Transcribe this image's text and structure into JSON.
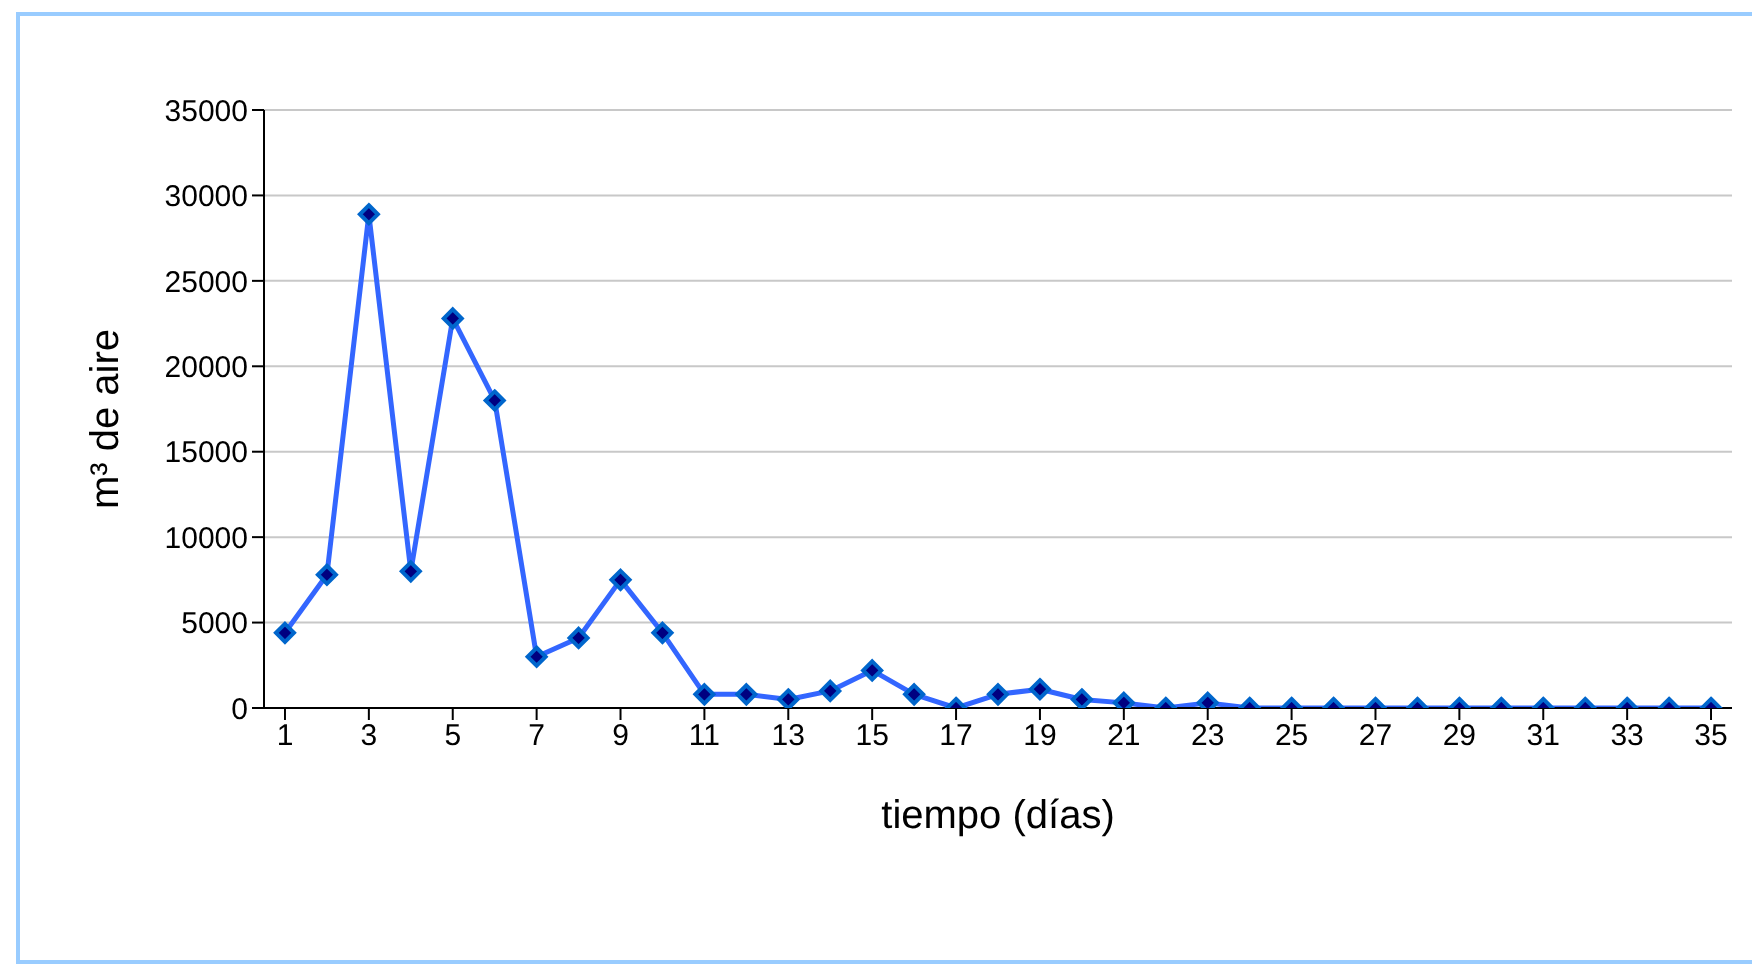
{
  "chart_data": {
    "type": "line",
    "xlabel": "tiempo (días)",
    "ylabel": "m³ de aire",
    "x": [
      1,
      2,
      3,
      4,
      5,
      6,
      7,
      8,
      9,
      10,
      11,
      12,
      13,
      14,
      15,
      16,
      17,
      18,
      19,
      20,
      21,
      22,
      23,
      24,
      25,
      26,
      27,
      28,
      29,
      30,
      31,
      32,
      33,
      34,
      35
    ],
    "xlim": [
      0.5,
      35.5
    ],
    "xticks": [
      1,
      3,
      5,
      7,
      9,
      11,
      13,
      15,
      17,
      19,
      21,
      23,
      25,
      27,
      29,
      31,
      33,
      35
    ],
    "series": [
      {
        "color": "#3366ff",
        "values": [
          4400,
          7800,
          28900,
          8000,
          22800,
          18000,
          3000,
          4100,
          7500,
          4400,
          800,
          800,
          500,
          1000,
          2200,
          800,
          0,
          800,
          1100,
          500,
          300,
          0,
          300,
          0,
          0,
          0,
          0,
          0,
          0,
          0,
          0,
          0,
          0,
          0,
          0
        ]
      }
    ],
    "ylim": [
      0,
      35000
    ],
    "yticks": [
      0,
      5000,
      10000,
      15000,
      20000,
      25000,
      30000,
      35000
    ],
    "grid": "y",
    "marker": "diamond",
    "line_style": "solid"
  }
}
